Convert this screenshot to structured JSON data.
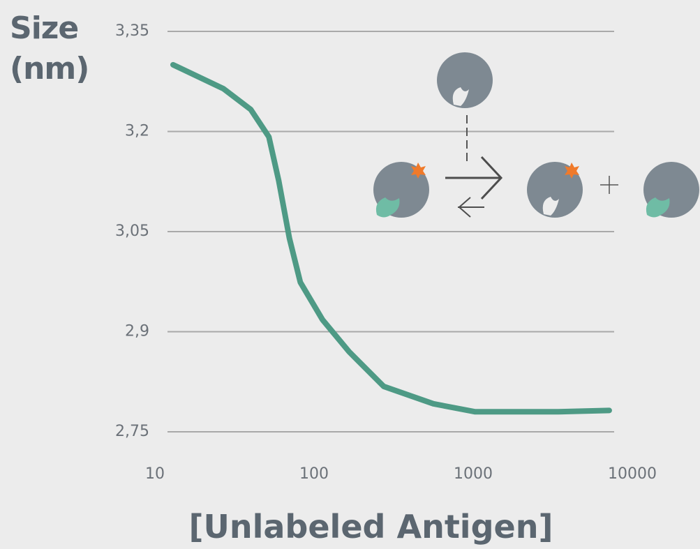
{
  "chart_data": {
    "type": "line",
    "ylabel": "Size (nm)",
    "xlabel": "[Unlabeled Antigen]",
    "xscale": "log",
    "xlim": [
      10,
      10000
    ],
    "xticks": [
      10,
      100,
      1000,
      10000
    ],
    "ylim": [
      2.75,
      3.35
    ],
    "yticks": [
      {
        "value": 2.75,
        "label": "2,75"
      },
      {
        "value": 2.9,
        "label": "2,9"
      },
      {
        "value": 3.05,
        "label": "3,05"
      },
      {
        "value": 3.2,
        "label": "3,2"
      },
      {
        "value": 3.35,
        "label": "3,35"
      }
    ],
    "grid": true,
    "series": [
      {
        "color": "#4e9a85",
        "x": [
          13,
          27,
          40,
          52,
          60,
          70,
          82,
          113,
          166,
          274,
          562,
          1030,
          3430,
          7160
        ],
        "values": [
          3.3,
          3.264,
          3.233,
          3.192,
          3.126,
          3.04,
          2.974,
          2.918,
          2.87,
          2.818,
          2.792,
          2.78,
          2.78,
          2.782
        ]
      }
    ]
  }
}
